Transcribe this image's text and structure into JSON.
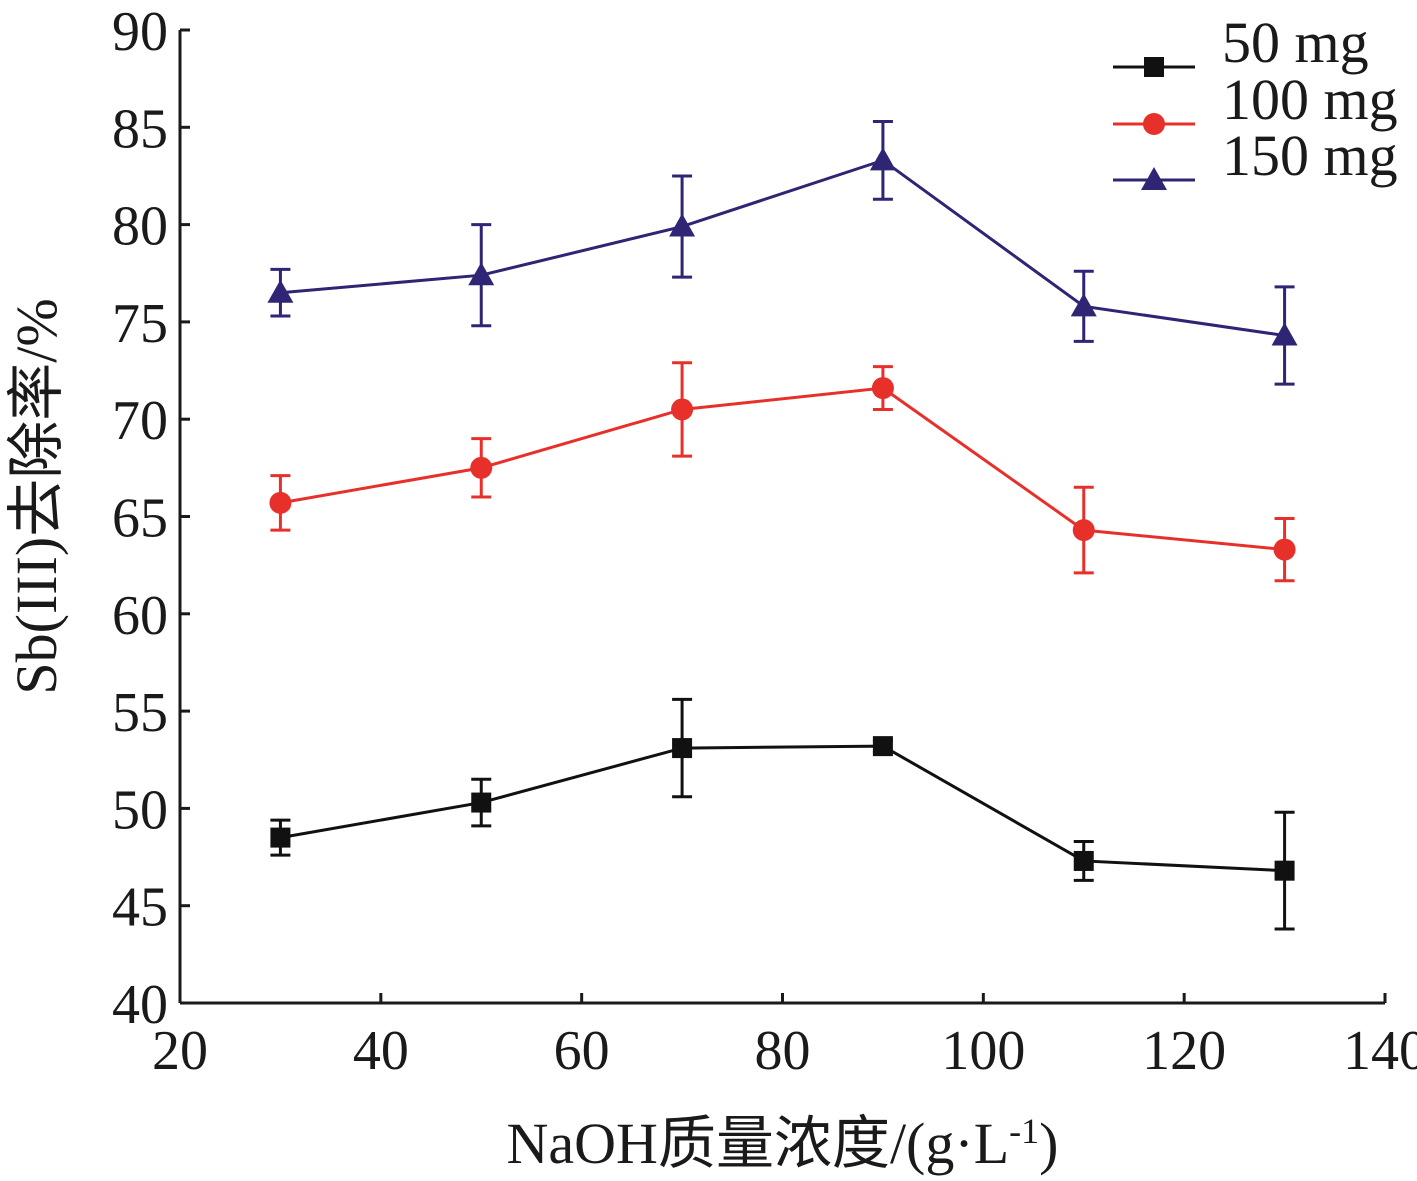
{
  "chart_data": {
    "type": "line",
    "xlabel": "NaOH质量浓度/(g·L",
    "xlabel_superscript": "-1",
    "xlabel_suffix": ")",
    "ylabel": "Sb(III)去除率/%",
    "xlim": [
      20,
      140
    ],
    "ylim": [
      40,
      90
    ],
    "x_ticks": [
      "20",
      "40",
      "60",
      "80",
      "100",
      "120",
      "140"
    ],
    "y_ticks": [
      "40",
      "45",
      "50",
      "55",
      "60",
      "65",
      "70",
      "75",
      "80",
      "85",
      "90"
    ],
    "grid": false,
    "legend_position": "top-right",
    "x": [
      30,
      50,
      70,
      90,
      110,
      130
    ],
    "series": [
      {
        "name": "50 mg",
        "color": "#111111",
        "marker": "square",
        "values": [
          48.5,
          50.3,
          53.1,
          53.2,
          47.3,
          46.8
        ],
        "errors": [
          0.9,
          1.2,
          2.5,
          0.3,
          1.0,
          3.0
        ]
      },
      {
        "name": "100 mg",
        "color": "#e8302b",
        "marker": "circle",
        "values": [
          65.7,
          67.5,
          70.5,
          71.6,
          64.3,
          63.3
        ],
        "errors": [
          1.4,
          1.5,
          2.4,
          1.1,
          2.2,
          1.6
        ]
      },
      {
        "name": "150 mg",
        "color": "#2e2574",
        "marker": "triangle",
        "values": [
          76.5,
          77.4,
          79.9,
          83.3,
          75.8,
          74.3
        ],
        "errors": [
          1.2,
          2.6,
          2.6,
          2.0,
          1.8,
          2.5
        ]
      }
    ]
  }
}
